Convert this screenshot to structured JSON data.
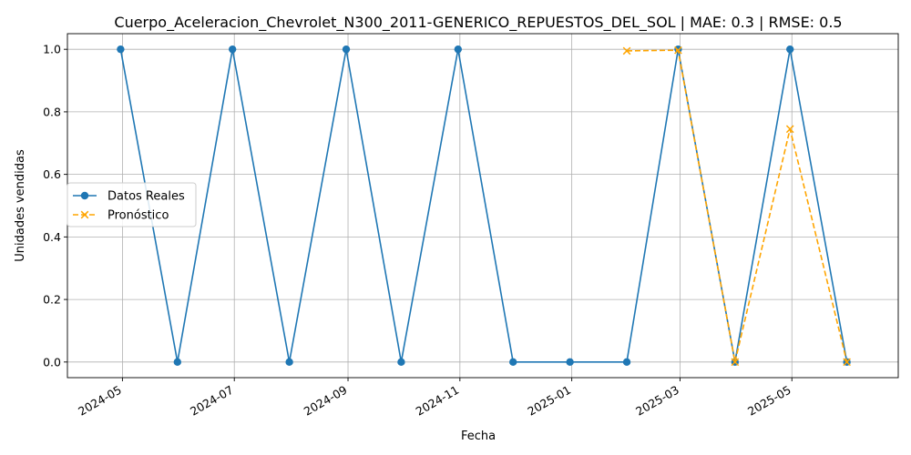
{
  "chart_data": {
    "type": "line",
    "title": "Cuerpo_Aceleracion_Chevrolet_N300_2011-GENERICO_REPUESTOS_DEL_SOL | MAE: 0.3 | RMSE: 0.5",
    "xlabel": "Fecha",
    "ylabel": "Unidades vendidas",
    "ylim": [
      -0.05,
      1.05
    ],
    "yticks": [
      0.0,
      0.2,
      0.4,
      0.6,
      0.8,
      1.0
    ],
    "ytick_labels": [
      "0.0",
      "0.2",
      "0.4",
      "0.6",
      "0.8",
      "1.0"
    ],
    "xlim": [
      "2024-04-01",
      "2025-06-28"
    ],
    "xticks": [
      "2024-05-01",
      "2024-07-01",
      "2024-09-01",
      "2024-11-01",
      "2025-01-01",
      "2025-03-01",
      "2025-05-01"
    ],
    "xtick_labels": [
      "2024-05",
      "2024-07",
      "2024-09",
      "2024-11",
      "2025-01",
      "2025-03",
      "2025-05"
    ],
    "grid": true,
    "legend_position": "center-left",
    "series": [
      {
        "name": "Datos Reales",
        "color": "#1f77b4",
        "linestyle": "solid",
        "marker": "circle",
        "x": [
          "2024-04-30",
          "2024-05-31",
          "2024-06-30",
          "2024-07-31",
          "2024-08-31",
          "2024-09-30",
          "2024-10-31",
          "2024-11-30",
          "2024-12-31",
          "2025-01-31",
          "2025-02-28",
          "2025-03-31",
          "2025-04-30",
          "2025-05-31"
        ],
        "values": [
          1,
          0,
          1,
          0,
          1,
          0,
          1,
          0,
          0,
          0,
          1,
          0,
          1,
          0
        ]
      },
      {
        "name": "Pronóstico",
        "color": "#ffa500",
        "linestyle": "dashed",
        "marker": "x",
        "x": [
          "2025-01-31",
          "2025-02-28",
          "2025-03-31",
          "2025-04-30",
          "2025-05-31"
        ],
        "values": [
          0.995,
          0.997,
          0.0,
          0.745,
          0.0
        ]
      }
    ]
  }
}
